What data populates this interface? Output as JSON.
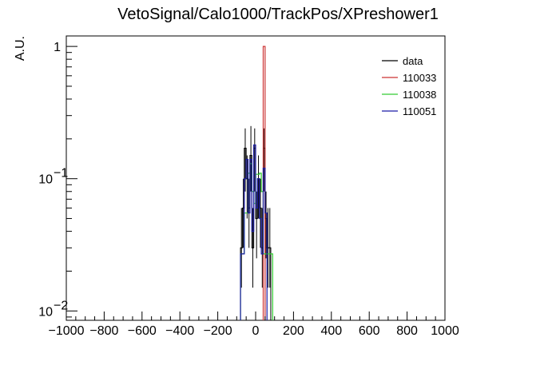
{
  "chart_data": {
    "type": "histogram",
    "title": "VetoSignal/Calo1000/TrackPos/XPreshower1",
    "xlabel": "",
    "ylabel": "A.U.",
    "xlim": [
      -1000,
      1000
    ],
    "ylim": [
      0.0085,
      1.2
    ],
    "yscale": "log",
    "x_ticks": [
      "−1000",
      "−800",
      "−600",
      "−400",
      "−200",
      "0",
      "200",
      "400",
      "600",
      "800",
      "1000"
    ],
    "x_tick_values": [
      -1000,
      -800,
      -600,
      -400,
      -200,
      0,
      200,
      400,
      600,
      800,
      1000
    ],
    "y_ticks": [
      {
        "value": 0.01,
        "base": "10",
        "exp": "−2"
      },
      {
        "value": 0.1,
        "base": "10",
        "exp": "−1"
      },
      {
        "value": 1,
        "base": "1",
        "exp": ""
      }
    ],
    "grid": false,
    "legend_position": "top-right",
    "bin_width": 10,
    "series": [
      {
        "name": "data",
        "color": "#000000",
        "style": "points-with-errors",
        "x": [
          -75,
          -65,
          -55,
          -45,
          -35,
          -25,
          -15,
          -5,
          5,
          15,
          25,
          35,
          45,
          55,
          65,
          75
        ],
        "y": [
          0.03,
          0.06,
          0.17,
          0.1,
          0.06,
          0.15,
          0.03,
          0.17,
          0.05,
          0.1,
          0.06,
          0.03,
          0.17,
          0.05,
          0.03,
          0.03
        ],
        "yerr_lo": [
          0.015,
          0.03,
          0.09,
          0.05,
          0.03,
          0.07,
          0.015,
          0.09,
          0.025,
          0.05,
          0.03,
          0.015,
          0.09,
          0.025,
          0.015,
          0.015
        ],
        "yerr_hi": [
          0.03,
          0.04,
          0.07,
          0.05,
          0.04,
          0.1,
          0.03,
          0.07,
          0.03,
          0.05,
          0.04,
          0.03,
          0.07,
          0.03,
          0.03,
          0.03
        ]
      },
      {
        "name": "110033",
        "color": "#cc3333",
        "style": "step",
        "x": [
          45
        ],
        "y": [
          1.0
        ]
      },
      {
        "name": "110038",
        "color": "#33cc33",
        "style": "step",
        "x": [
          -75,
          -65,
          -55,
          -45,
          -35,
          -25,
          -15,
          -5,
          5,
          15,
          25,
          35,
          45,
          55,
          65,
          75,
          85
        ],
        "y": [
          0.027,
          0.027,
          0.055,
          0.055,
          0.11,
          0.13,
          0.08,
          0.065,
          0.108,
          0.108,
          0.11,
          0.08,
          0.027,
          0.027,
          0.027,
          0.027,
          0.027
        ]
      },
      {
        "name": "110051",
        "color": "#1a1aa6",
        "style": "step",
        "x": [
          -75,
          -65,
          -55,
          -45,
          -35,
          -25,
          -15,
          -5,
          5,
          15,
          25,
          35,
          45,
          55
        ],
        "y": [
          0.027,
          0.027,
          0.1,
          0.14,
          0.055,
          0.14,
          0.04,
          0.18,
          0.06,
          0.1,
          0.05,
          0.027,
          0.12,
          0.055
        ]
      }
    ]
  }
}
